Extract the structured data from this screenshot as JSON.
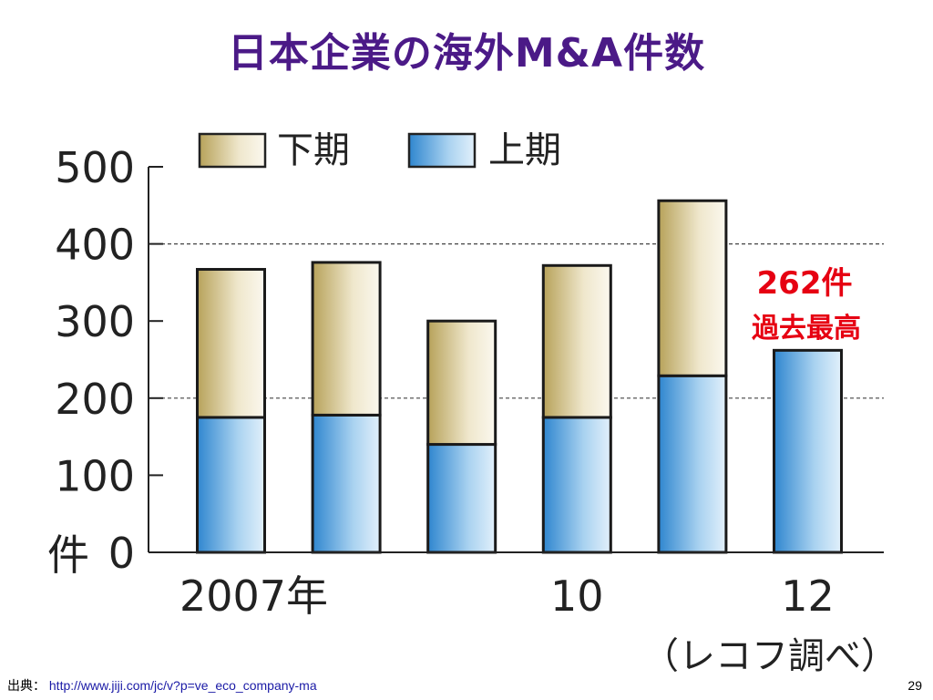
{
  "slide": {
    "title": "日本企業の海外M&A件数",
    "source_label": "出典：",
    "source_url": "http://www.jiji.com/jc/v?p=ve_eco_company-ma",
    "page_number": "29"
  },
  "chart_data": {
    "type": "bar",
    "stacked": true,
    "categories": [
      "2007",
      "2008",
      "2009",
      "2010",
      "2011",
      "2012"
    ],
    "x_tick_labels": [
      "2007年",
      "",
      "",
      "10",
      "",
      "12"
    ],
    "series": [
      {
        "name": "上期",
        "values": [
          175,
          178,
          140,
          175,
          229,
          262
        ],
        "color": "#5aa8df"
      },
      {
        "name": "下期",
        "values": [
          192,
          198,
          160,
          197,
          227,
          0
        ],
        "color": "#c8b878"
      }
    ],
    "legend_order": [
      "下期",
      "上期"
    ],
    "ylim": [
      0,
      500
    ],
    "y_ticks": [
      "0",
      "100",
      "200",
      "300",
      "400",
      "500"
    ],
    "y_unit_label": "件",
    "gridlines": [
      200,
      400
    ],
    "legend_position": "top",
    "annotation": {
      "line1": "262件",
      "line2": "過去最高"
    },
    "credit": "（レコフ調べ）"
  }
}
